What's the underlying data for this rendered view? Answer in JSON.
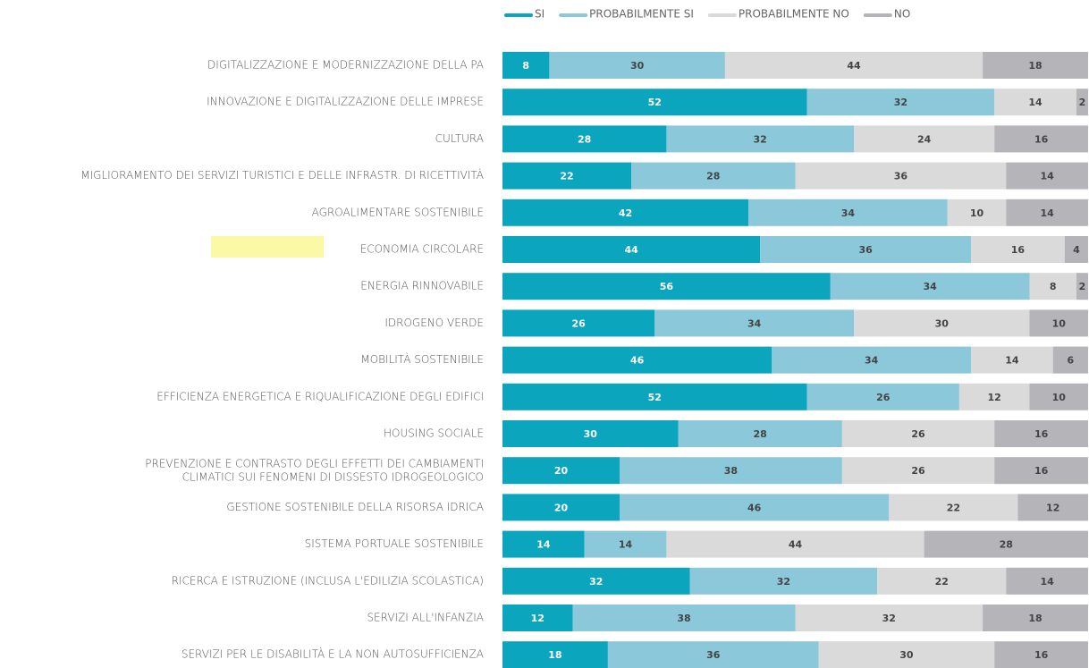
{
  "chart_data": {
    "type": "stacked_bar_horizontal",
    "categories": [
      "DIGITALIZZAZIONE E MODERNIZZAZIONE DELLA PA",
      "INNOVAZIONE E DIGITALIZZAZIONE DELLE IMPRESE",
      "CULTURA",
      "MIGLIORAMENTO DEI SERVIZI TURISTICI E DELLE INFRASTR. DI RICETTIVITÀ",
      "AGROALIMENTARE SOSTENIBILE",
      "ECONOMIA CIRCOLARE",
      "ENERGIA RINNOVABILE",
      "IDROGENO VERDE",
      "MOBILITÀ SOSTENIBILE",
      "EFFICIENZA ENERGETICA E RIQUALIFICAZIONE DEGLI EDIFICI",
      "HOUSING SOCIALE",
      "PREVENZIONE E CONTRASTO DEGLI EFFETTI DEI CAMBIAMENTI\nCLIMATICI SUI FENOMENI DI DISSESTO IDROGEOLOGICO",
      "GESTIONE SOSTENIBILE DELLA RISORSA IDRICA",
      "SISTEMA PORTUALE SOSTENIBILE",
      "RICERCA E ISTRUZIONE (INCLUSA L'EDILIZIA SCOLASTICA)",
      "SERVIZI ALL'INFANZIA",
      "SERVIZI PER LE DISABILITÀ E LA NON AUTOSUFFICIENZA"
    ],
    "series": [
      {
        "name": "SI",
        "color": "#0ba5be",
        "values": [
          8,
          52,
          28,
          22,
          42,
          44,
          56,
          26,
          46,
          52,
          30,
          20,
          20,
          14,
          32,
          12,
          18
        ]
      },
      {
        "name": "PROBABILMENTE SI",
        "color": "#8bc9da",
        "values": [
          30,
          32,
          32,
          28,
          34,
          36,
          34,
          34,
          34,
          26,
          28,
          38,
          46,
          14,
          32,
          38,
          36
        ]
      },
      {
        "name": "PROBABILMENTE NO",
        "color": "#dadada",
        "values": [
          44,
          14,
          24,
          36,
          10,
          16,
          8,
          30,
          14,
          12,
          26,
          26,
          22,
          44,
          22,
          32,
          30
        ]
      },
      {
        "name": "NO",
        "color": "#b4b4b9",
        "values": [
          18,
          2,
          16,
          14,
          14,
          4,
          2,
          10,
          6,
          10,
          16,
          16,
          12,
          28,
          14,
          18,
          16
        ]
      }
    ],
    "xlim": [
      0,
      100
    ],
    "legend": "top"
  }
}
